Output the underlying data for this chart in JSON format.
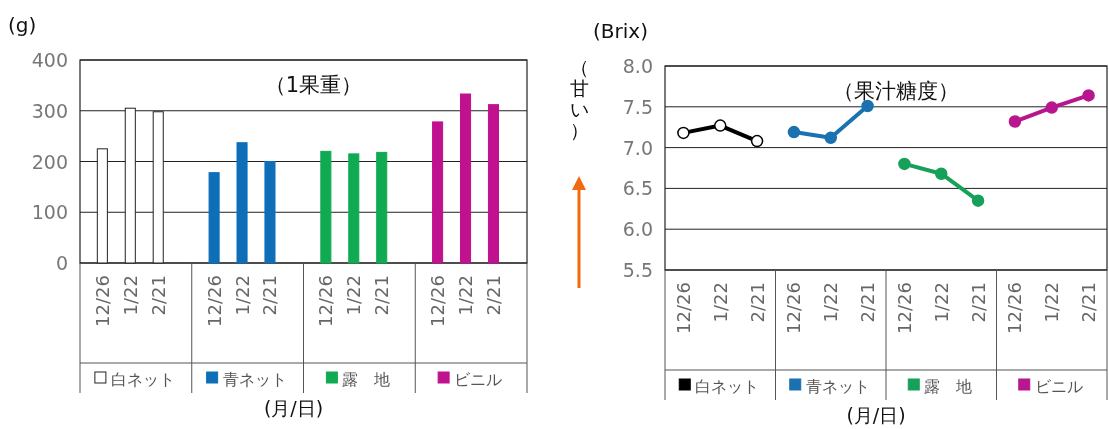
{
  "chart_data": [
    {
      "type": "bar",
      "title": "（1果重）",
      "ylabel": "(g)",
      "xlabel": "(月/日)",
      "categories": [
        "12/26",
        "1/22",
        "2/21",
        "12/26",
        "1/22",
        "2/21",
        "12/26",
        "1/22",
        "2/21",
        "12/26",
        "1/22",
        "2/21"
      ],
      "series": [
        {
          "name": "白ネット",
          "color": "#ffffff",
          "values": [
            225,
            305,
            298,
            null,
            null,
            null,
            null,
            null,
            null,
            null,
            null,
            null
          ]
        },
        {
          "name": "青ネット",
          "color": "#0e6eb8",
          "values": [
            null,
            null,
            null,
            178,
            237,
            200,
            null,
            null,
            null,
            null,
            null,
            null
          ]
        },
        {
          "name": "露　地",
          "color": "#10aa52",
          "values": [
            null,
            null,
            null,
            null,
            null,
            null,
            220,
            215,
            218,
            null,
            null,
            null
          ]
        },
        {
          "name": "ビニル",
          "color": "#c0128e",
          "values": [
            null,
            null,
            null,
            null,
            null,
            null,
            null,
            null,
            null,
            278,
            333,
            312
          ]
        }
      ],
      "ylim": [
        0,
        400
      ],
      "yticks": [
        0,
        100,
        200,
        300,
        400
      ],
      "grid": "y",
      "legend": "bottom"
    },
    {
      "type": "line",
      "title": "（果汁糖度）",
      "ylabel": "(Brix)",
      "annotations": [
        "（甘い）"
      ],
      "xlabel": "(月/日)",
      "categories": [
        "12/26",
        "1/22",
        "2/21",
        "12/26",
        "1/22",
        "2/21",
        "12/26",
        "1/22",
        "2/21",
        "12/26",
        "1/22",
        "2/21"
      ],
      "series": [
        {
          "name": "白ネット",
          "color": "#000000",
          "values": [
            7.18,
            7.27,
            7.08,
            null,
            null,
            null,
            null,
            null,
            null,
            null,
            null,
            null
          ]
        },
        {
          "name": "青ネット",
          "color": "#1a72b0",
          "values": [
            null,
            null,
            null,
            7.19,
            7.12,
            7.51,
            null,
            null,
            null,
            null,
            null,
            null
          ]
        },
        {
          "name": "露　地",
          "color": "#17a05a",
          "values": [
            null,
            null,
            null,
            null,
            null,
            null,
            6.8,
            6.68,
            6.35,
            null,
            null,
            null
          ]
        },
        {
          "name": "ビニル",
          "color": "#b8168e",
          "values": [
            null,
            null,
            null,
            null,
            null,
            null,
            null,
            null,
            null,
            7.32,
            7.49,
            7.64
          ]
        }
      ],
      "ylim": [
        5.5,
        8.0
      ],
      "yticks": [
        {
          "value": 5.5,
          "label": "5.5"
        },
        {
          "value": 6,
          "label": "6.0"
        },
        {
          "value": 6.5,
          "label": "6.5"
        },
        {
          "value": 7,
          "label": "7.0"
        },
        {
          "value": 7.5,
          "label": "7.5"
        },
        {
          "value": 8,
          "label": "8.0"
        }
      ],
      "grid": "y",
      "legend": "bottom",
      "marker": "circle"
    }
  ]
}
